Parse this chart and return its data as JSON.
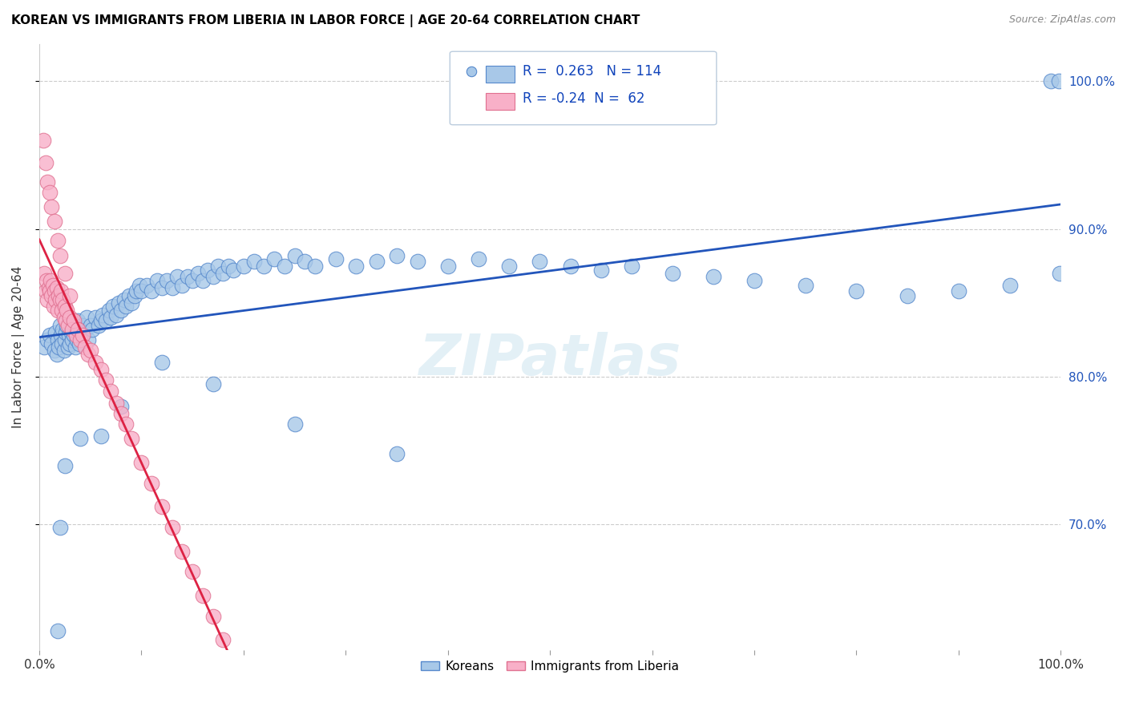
{
  "title": "KOREAN VS IMMIGRANTS FROM LIBERIA IN LABOR FORCE | AGE 20-64 CORRELATION CHART",
  "source": "Source: ZipAtlas.com",
  "ylabel": "In Labor Force | Age 20-64",
  "xlim": [
    0.0,
    1.0
  ],
  "ylim": [
    0.615,
    1.025
  ],
  "yticks": [
    0.7,
    0.8,
    0.9,
    1.0
  ],
  "ytick_labels": [
    "70.0%",
    "80.0%",
    "90.0%",
    "100.0%"
  ],
  "xticks": [
    0.0,
    0.1,
    0.2,
    0.3,
    0.4,
    0.5,
    0.6,
    0.7,
    0.8,
    0.9,
    1.0
  ],
  "xtick_labels": [
    "0.0%",
    "",
    "",
    "",
    "",
    "",
    "",
    "",
    "",
    "",
    "100.0%"
  ],
  "korean_color": "#a8c8e8",
  "liberia_color": "#f8b0c8",
  "korean_edge_color": "#5588cc",
  "liberia_edge_color": "#e07090",
  "trend_korean_color": "#2255bb",
  "trend_liberia_color": "#dd2244",
  "trend_diagonal_color": "#e0b8c8",
  "R_korean": 0.263,
  "N_korean": 114,
  "R_liberia": -0.24,
  "N_liberia": 62,
  "legend_label_korean": "Koreans",
  "legend_label_liberia": "Immigrants from Liberia",
  "watermark": "ZIPatlas",
  "korean_x": [
    0.005,
    0.008,
    0.01,
    0.012,
    0.015,
    0.016,
    0.017,
    0.018,
    0.019,
    0.02,
    0.021,
    0.022,
    0.023,
    0.024,
    0.025,
    0.026,
    0.027,
    0.028,
    0.029,
    0.03,
    0.031,
    0.032,
    0.033,
    0.034,
    0.035,
    0.036,
    0.037,
    0.038,
    0.039,
    0.04,
    0.042,
    0.044,
    0.046,
    0.048,
    0.05,
    0.052,
    0.055,
    0.058,
    0.06,
    0.062,
    0.065,
    0.068,
    0.07,
    0.072,
    0.075,
    0.078,
    0.08,
    0.083,
    0.085,
    0.088,
    0.09,
    0.093,
    0.095,
    0.098,
    0.1,
    0.105,
    0.11,
    0.115,
    0.12,
    0.125,
    0.13,
    0.135,
    0.14,
    0.145,
    0.15,
    0.155,
    0.16,
    0.165,
    0.17,
    0.175,
    0.18,
    0.185,
    0.19,
    0.2,
    0.21,
    0.22,
    0.23,
    0.24,
    0.25,
    0.26,
    0.27,
    0.29,
    0.31,
    0.33,
    0.35,
    0.37,
    0.4,
    0.43,
    0.46,
    0.49,
    0.52,
    0.55,
    0.58,
    0.62,
    0.66,
    0.7,
    0.75,
    0.8,
    0.85,
    0.9,
    0.95,
    0.99,
    0.998,
    0.999,
    0.35,
    0.25,
    0.17,
    0.12,
    0.08,
    0.06,
    0.04,
    0.025,
    0.02,
    0.018
  ],
  "korean_y": [
    0.82,
    0.825,
    0.828,
    0.822,
    0.818,
    0.83,
    0.815,
    0.825,
    0.82,
    0.835,
    0.828,
    0.822,
    0.832,
    0.818,
    0.825,
    0.83,
    0.835,
    0.82,
    0.828,
    0.822,
    0.83,
    0.825,
    0.835,
    0.828,
    0.82,
    0.832,
    0.825,
    0.838,
    0.822,
    0.828,
    0.835,
    0.83,
    0.84,
    0.825,
    0.835,
    0.832,
    0.84,
    0.835,
    0.838,
    0.842,
    0.838,
    0.845,
    0.84,
    0.848,
    0.842,
    0.85,
    0.845,
    0.852,
    0.848,
    0.855,
    0.85,
    0.855,
    0.858,
    0.862,
    0.858,
    0.862,
    0.858,
    0.865,
    0.86,
    0.865,
    0.86,
    0.868,
    0.862,
    0.868,
    0.865,
    0.87,
    0.865,
    0.872,
    0.868,
    0.875,
    0.87,
    0.875,
    0.872,
    0.875,
    0.878,
    0.875,
    0.88,
    0.875,
    0.882,
    0.878,
    0.875,
    0.88,
    0.875,
    0.878,
    0.882,
    0.878,
    0.875,
    0.88,
    0.875,
    0.878,
    0.875,
    0.872,
    0.875,
    0.87,
    0.868,
    0.865,
    0.862,
    0.858,
    0.855,
    0.858,
    0.862,
    1.0,
    1.0,
    0.87,
    0.748,
    0.768,
    0.795,
    0.81,
    0.78,
    0.76,
    0.758,
    0.74,
    0.698,
    0.628
  ],
  "liberia_x": [
    0.005,
    0.006,
    0.007,
    0.008,
    0.009,
    0.01,
    0.011,
    0.012,
    0.013,
    0.014,
    0.015,
    0.016,
    0.017,
    0.018,
    0.019,
    0.02,
    0.021,
    0.022,
    0.023,
    0.024,
    0.025,
    0.026,
    0.027,
    0.028,
    0.03,
    0.032,
    0.034,
    0.036,
    0.038,
    0.04,
    0.042,
    0.045,
    0.048,
    0.05,
    0.055,
    0.06,
    0.065,
    0.07,
    0.075,
    0.08,
    0.085,
    0.09,
    0.1,
    0.11,
    0.12,
    0.13,
    0.14,
    0.15,
    0.16,
    0.17,
    0.18,
    0.19,
    0.004,
    0.006,
    0.008,
    0.01,
    0.012,
    0.015,
    0.018,
    0.02,
    0.025,
    0.03
  ],
  "liberia_y": [
    0.87,
    0.858,
    0.865,
    0.852,
    0.86,
    0.858,
    0.865,
    0.855,
    0.862,
    0.848,
    0.858,
    0.852,
    0.86,
    0.845,
    0.855,
    0.852,
    0.858,
    0.845,
    0.852,
    0.84,
    0.848,
    0.838,
    0.845,
    0.835,
    0.84,
    0.832,
    0.838,
    0.828,
    0.832,
    0.825,
    0.828,
    0.82,
    0.815,
    0.818,
    0.81,
    0.805,
    0.798,
    0.79,
    0.782,
    0.775,
    0.768,
    0.758,
    0.742,
    0.728,
    0.712,
    0.698,
    0.682,
    0.668,
    0.652,
    0.638,
    0.622,
    0.608,
    0.96,
    0.945,
    0.932,
    0.925,
    0.915,
    0.905,
    0.892,
    0.882,
    0.87,
    0.855
  ]
}
